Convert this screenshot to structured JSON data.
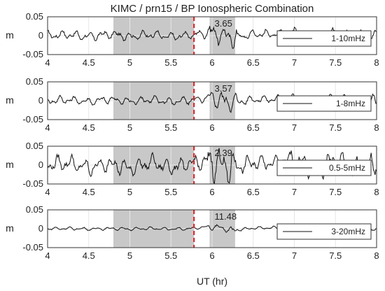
{
  "chart_data": [
    {
      "type": "line",
      "title": "KIMC / prn15 / BP Ionospheric Combination",
      "xlabel": "",
      "ylabel": "m",
      "xlim": [
        4,
        8
      ],
      "ylim": [
        -0.05,
        0.05
      ],
      "xticks": [
        "4",
        "4.5",
        "5",
        "5.5",
        "6",
        "6.5",
        "7",
        "7.5",
        "8"
      ],
      "yticks": [
        "0.05",
        "0",
        "-0.05"
      ],
      "grid": true,
      "legend_position": "top-right",
      "shaded_interval": [
        4.8,
        5.78
      ],
      "shaded_interval_2": [
        5.97,
        6.28
      ],
      "event_time": 5.78,
      "annotation": {
        "text": "3.65",
        "x": 6.03,
        "y": 0.04
      },
      "series": [
        {
          "name": "1-10mHz",
          "amplitude": 0.012,
          "x": [
            4.0,
            4.25,
            4.5,
            4.75,
            5.0,
            5.25,
            5.5,
            5.75,
            6.0,
            6.25,
            6.5,
            6.75,
            7.0,
            7.25,
            7.5,
            7.75,
            8.0
          ],
          "y": [
            0.0,
            0.008,
            -0.007,
            0.01,
            -0.006,
            0.009,
            -0.008,
            0.005,
            0.02,
            -0.015,
            0.01,
            0.012,
            0.015,
            -0.02,
            0.02,
            -0.015,
            0.0
          ]
        }
      ]
    },
    {
      "type": "line",
      "title": "",
      "xlabel": "",
      "ylabel": "m",
      "xlim": [
        4,
        8
      ],
      "ylim": [
        -0.05,
        0.05
      ],
      "xticks": [
        "4",
        "4.5",
        "5",
        "5.5",
        "6",
        "6.5",
        "7",
        "7.5",
        "8"
      ],
      "yticks": [
        "0.05",
        "0",
        "-0.05"
      ],
      "grid": true,
      "legend_position": "top-right",
      "shaded_interval": [
        4.8,
        5.78
      ],
      "shaded_interval_2": [
        5.97,
        6.28
      ],
      "event_time": 5.78,
      "annotation": {
        "text": "3.57",
        "x": 6.03,
        "y": 0.04
      },
      "series": [
        {
          "name": "1-8mHz",
          "amplitude": 0.011,
          "x": [
            4.0,
            4.25,
            4.5,
            4.75,
            5.0,
            5.25,
            5.5,
            5.75,
            6.0,
            6.25,
            6.5,
            6.75,
            7.0,
            7.25,
            7.5,
            7.75,
            8.0
          ],
          "y": [
            0.0,
            0.007,
            -0.006,
            0.009,
            -0.005,
            0.008,
            -0.007,
            0.004,
            0.018,
            -0.012,
            0.008,
            0.01,
            0.012,
            -0.018,
            0.018,
            -0.013,
            0.0
          ]
        }
      ]
    },
    {
      "type": "line",
      "title": "",
      "xlabel": "",
      "ylabel": "m",
      "xlim": [
        4,
        8
      ],
      "ylim": [
        -0.05,
        0.05
      ],
      "xticks": [
        "4",
        "4.5",
        "5",
        "5.5",
        "6",
        "6.5",
        "7",
        "7.5",
        "8"
      ],
      "yticks": [
        "0.05",
        "0",
        "-0.05"
      ],
      "grid": true,
      "legend_position": "top-right",
      "shaded_interval": [
        4.8,
        5.78
      ],
      "shaded_interval_2": [
        5.97,
        6.28
      ],
      "event_time": 5.78,
      "annotation": {
        "text": "2.39",
        "x": 6.03,
        "y": 0.035
      },
      "series": [
        {
          "name": "0.5-5mHz",
          "amplitude": 0.022,
          "x": [
            4.0,
            4.25,
            4.5,
            4.75,
            5.0,
            5.25,
            5.5,
            5.75,
            6.0,
            6.25,
            6.5,
            6.75,
            7.0,
            7.25,
            7.5,
            7.75,
            8.0
          ],
          "y": [
            0.005,
            0.015,
            -0.02,
            0.01,
            -0.025,
            0.02,
            -0.018,
            0.012,
            0.025,
            -0.02,
            0.015,
            0.02,
            0.03,
            -0.035,
            0.03,
            -0.03,
            0.0
          ]
        }
      ]
    },
    {
      "type": "line",
      "title": "",
      "xlabel": "UT (hr)",
      "ylabel": "m",
      "xlim": [
        4,
        8
      ],
      "ylim": [
        -0.05,
        0.05
      ],
      "xticks": [
        "4",
        "4.5",
        "5",
        "5.5",
        "6",
        "6.5",
        "7",
        "7.5",
        "8"
      ],
      "yticks": [
        "0.05",
        "0",
        "-0.05"
      ],
      "grid": true,
      "legend_position": "top-right",
      "shaded_interval": [
        4.8,
        5.78
      ],
      "shaded_interval_2": [
        5.97,
        6.28
      ],
      "event_time": 5.78,
      "annotation": {
        "text": "11.48",
        "x": 6.03,
        "y": 0.04
      },
      "series": [
        {
          "name": "3-20mHz",
          "amplitude": 0.004,
          "x": [
            4.0,
            4.25,
            4.5,
            4.75,
            5.0,
            5.25,
            5.5,
            5.75,
            6.0,
            6.25,
            6.5,
            6.75,
            7.0,
            7.25,
            7.5,
            7.75,
            8.0
          ],
          "y": [
            0.0,
            0.002,
            -0.002,
            0.002,
            -0.002,
            0.002,
            -0.002,
            0.001,
            0.015,
            -0.01,
            0.004,
            0.006,
            0.008,
            -0.008,
            0.01,
            -0.008,
            0.0
          ]
        }
      ]
    }
  ],
  "colors": {
    "line": "#111111",
    "shade": "#c8c8c8",
    "event_line": "#e0282c",
    "grid": "#e6e6e6",
    "axis": "#333333"
  }
}
